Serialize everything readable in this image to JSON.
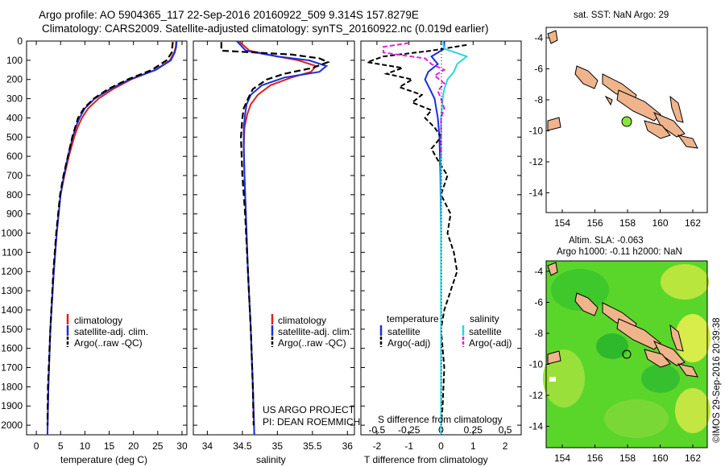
{
  "header": {
    "line1": "Argo profile: AO 5904365_117 22-Sep-2016 20160922_509 9.314S 157.8279E",
    "line2": "Climatology: CARS2009. Satellite-adjusted climatology: synTS_20160922.nc (0.019d earlier)"
  },
  "colors": {
    "climatology": "#e0201a",
    "satellite_adj": "#1a2ee0",
    "argo": "#000000",
    "sal_satellite": "#27d6e0",
    "sal_argo": "#e020e0",
    "land": "#f0b48c",
    "float_marker": "#8ae63a"
  },
  "panels": {
    "temperature": {
      "xlabel": "temperature (deg C)",
      "xticks": [
        "0",
        "5",
        "10",
        "15",
        "20",
        "25",
        "30"
      ],
      "legend": [
        "climatology",
        "satellite-adj. clim.",
        "Argo(..raw -QC)"
      ]
    },
    "salinity": {
      "xlabel": "salinity",
      "xticks": [
        "34",
        "34.5",
        "35",
        "35.5",
        "36"
      ],
      "legend": [
        "climatology",
        "satellite-adj. clim.",
        "Argo(..raw -QC)"
      ],
      "note1": "US ARGO PROJECT",
      "note2": "PI: DEAN ROEMMICH"
    },
    "difference": {
      "xlabel": "T difference from climatology",
      "top_label": "S difference from climatology",
      "xticks_T": [
        "-2",
        "-1",
        "0",
        "1",
        "2"
      ],
      "xticks_S": [
        "-0.5",
        "-0.25",
        "0",
        "0.25",
        "0.5"
      ],
      "legend_temperature": {
        "title": "temperature",
        "items": [
          "satellite",
          "Argo(-adj)"
        ]
      },
      "legend_salinity": {
        "title": "salinity",
        "items": [
          "satellite",
          "Argo(-adj)"
        ]
      }
    },
    "depth_ticks": [
      "0",
      "100",
      "200",
      "300",
      "400",
      "500",
      "600",
      "700",
      "800",
      "900",
      "1000",
      "1100",
      "1200",
      "1300",
      "1400",
      "1500",
      "1600",
      "1700",
      "1800",
      "1900",
      "2000"
    ],
    "map_top": {
      "title": "sat. SST: NaN Argo: 29",
      "xticks": [
        "154",
        "156",
        "158",
        "160",
        "162"
      ],
      "yticks": [
        "-4",
        "-6",
        "-8",
        "-10",
        "-12",
        "-14"
      ]
    },
    "map_bottom": {
      "title1": "Altim. SLA: -0.063",
      "title2": "Argo h1000: -0.11 h2000: NaN",
      "xticks": [
        "154",
        "156",
        "158",
        "160",
        "162"
      ],
      "yticks": [
        "-4",
        "-6",
        "-8",
        "-10",
        "-12",
        "-14"
      ]
    },
    "side_label": "©IMOS 29-Sep-2016 20:39:38"
  },
  "chart_data": [
    {
      "type": "line",
      "title": "",
      "xlabel": "temperature (deg C)",
      "ylabel": "",
      "xlim": [
        -2,
        31
      ],
      "ylim": [
        2050,
        0
      ],
      "series": [
        {
          "name": "climatology",
          "depth": [
            0,
            30,
            60,
            100,
            150,
            200,
            250,
            300,
            350,
            400,
            450,
            500,
            600,
            700,
            800,
            1000,
            1200,
            1500,
            1800,
            2050
          ],
          "values": [
            28.8,
            28.7,
            28.4,
            27.5,
            24.5,
            19.5,
            15.8,
            12.8,
            10.7,
            9.4,
            8.5,
            7.8,
            6.7,
            5.8,
            5.0,
            4.2,
            3.6,
            2.9,
            2.5,
            2.3
          ]
        },
        {
          "name": "satellite-adj. clim.",
          "depth": [
            0,
            30,
            60,
            100,
            150,
            200,
            250,
            300,
            350,
            400,
            450,
            500,
            600,
            700,
            800,
            1000,
            1200,
            1500,
            1800,
            2050
          ],
          "values": [
            28.9,
            28.8,
            28.5,
            27.7,
            24.6,
            19.2,
            15.2,
            12.0,
            10.0,
            8.9,
            8.1,
            7.5,
            6.5,
            5.7,
            5.0,
            4.2,
            3.6,
            2.9,
            2.5,
            2.3
          ]
        },
        {
          "name": "Argo(..raw -QC)",
          "depth": [
            5,
            30,
            60,
            100,
            150,
            200,
            250,
            300,
            350,
            400,
            450,
            500,
            600,
            700,
            800,
            1000,
            1200,
            1500,
            1800,
            2000
          ],
          "values": [
            28.1,
            28.0,
            27.9,
            26.8,
            23.8,
            18.8,
            14.8,
            11.8,
            9.8,
            8.6,
            8.0,
            7.4,
            6.5,
            5.6,
            4.9,
            4.1,
            3.5,
            2.9,
            2.4,
            2.3
          ]
        }
      ]
    },
    {
      "type": "line",
      "title": "",
      "xlabel": "salinity",
      "ylabel": "",
      "xlim": [
        33.8,
        36.1
      ],
      "ylim": [
        2050,
        0
      ],
      "series": [
        {
          "name": "climatology",
          "depth": [
            0,
            50,
            80,
            100,
            130,
            160,
            190,
            230,
            280,
            330,
            380,
            450,
            550,
            700,
            900,
            1200,
            1500,
            1800,
            2050
          ],
          "values": [
            34.45,
            34.6,
            35.0,
            35.3,
            35.55,
            35.48,
            35.2,
            34.9,
            34.72,
            34.62,
            34.57,
            34.53,
            34.52,
            34.53,
            34.55,
            34.58,
            34.62,
            34.65,
            34.67
          ]
        },
        {
          "name": "satellite-adj. clim.",
          "depth": [
            0,
            50,
            80,
            100,
            130,
            160,
            190,
            230,
            280,
            330,
            380,
            450,
            550,
            700,
            900,
            1200,
            1500,
            1800,
            2050
          ],
          "values": [
            34.42,
            34.55,
            35.0,
            35.45,
            35.7,
            35.6,
            35.1,
            34.78,
            34.62,
            34.56,
            34.54,
            34.52,
            34.52,
            34.53,
            34.55,
            34.58,
            34.62,
            34.65,
            34.67
          ]
        },
        {
          "name": "Argo(..raw -QC)",
          "depth": [
            5,
            50,
            70,
            90,
            110,
            140,
            170,
            200,
            250,
            300,
            350,
            400,
            500,
            600,
            700,
            800,
            900,
            1200,
            1500,
            1800,
            2000
          ],
          "values": [
            34.2,
            34.2,
            35.2,
            35.6,
            35.72,
            35.5,
            35.1,
            34.85,
            34.65,
            34.58,
            34.52,
            34.5,
            34.48,
            34.49,
            34.5,
            34.52,
            34.54,
            34.58,
            34.62,
            34.65,
            34.66
          ]
        }
      ]
    },
    {
      "type": "line",
      "title": "",
      "xlabel": "T difference from climatology",
      "ylabel": "",
      "xlim": [
        -2.5,
        2.5
      ],
      "ylim": [
        2050,
        0
      ],
      "series": [
        {
          "name": "temperature satellite",
          "depth": [
            0,
            40,
            80,
            120,
            160,
            200,
            250,
            300,
            400,
            500,
            700,
            1000,
            1500,
            2050
          ],
          "values": [
            0.1,
            0.1,
            -0.3,
            -0.1,
            -0.4,
            -0.5,
            -0.35,
            -0.2,
            -0.1,
            -0.05,
            -0.02,
            0.0,
            0.0,
            0.0
          ]
        },
        {
          "name": "temperature Argo(-adj)",
          "depth": [
            20,
            50,
            80,
            110,
            140,
            170,
            200,
            240,
            280,
            320,
            360,
            400,
            450,
            500,
            560,
            620,
            700,
            800,
            900,
            1000,
            1100,
            1200,
            1300,
            1400,
            1500,
            1700,
            1900,
            2000
          ],
          "values": [
            0.8,
            -0.3,
            -1.8,
            -2.3,
            -1.2,
            -1.7,
            -0.9,
            -1.3,
            -0.6,
            -0.9,
            -0.3,
            -0.5,
            -0.2,
            0.0,
            -0.3,
            -0.1,
            0.2,
            0.0,
            0.3,
            0.2,
            0.4,
            0.5,
            0.3,
            0.1,
            0.0,
            0.1,
            0.05,
            0.0
          ]
        },
        {
          "name": "salinity satellite",
          "depth": [
            0,
            40,
            80,
            120,
            160,
            200,
            250,
            300,
            400,
            500,
            700,
            1000,
            1500,
            2050
          ],
          "values": [
            0.05,
            0.1,
            0.8,
            0.5,
            0.4,
            0.2,
            0.1,
            0.05,
            0.0,
            0.0,
            0.0,
            0.0,
            0.0,
            0.0
          ]
        },
        {
          "name": "salinity Argo(-adj)",
          "depth": [
            10,
            30,
            60,
            90,
            120,
            150,
            180,
            220,
            260,
            300,
            350,
            400,
            500,
            600
          ],
          "values": [
            -1.0,
            -1.8,
            -1.8,
            -0.5,
            -0.3,
            0.1,
            -0.2,
            0.1,
            -0.1,
            0.0,
            0.1,
            0.0,
            0.0,
            0.0
          ]
        }
      ]
    }
  ]
}
